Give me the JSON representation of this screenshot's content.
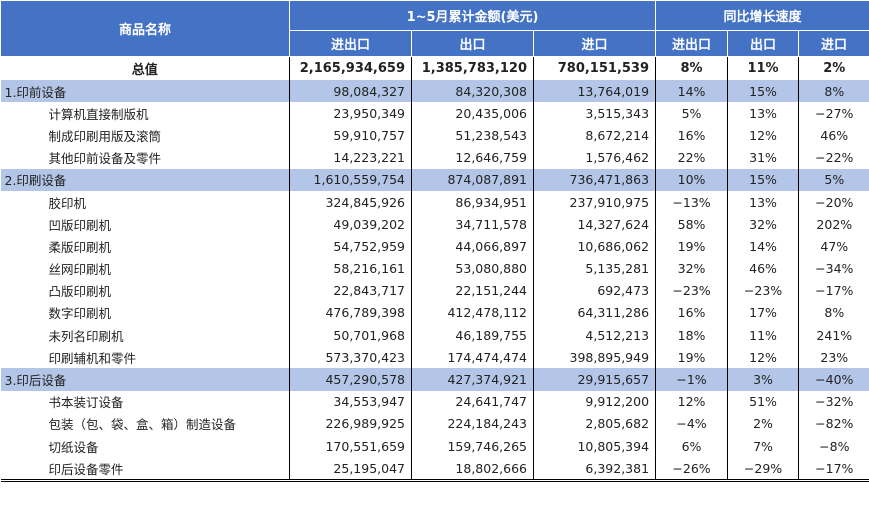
{
  "header": {
    "name": "商品名称",
    "amount_group": "1~5月累计金额(美元)",
    "growth_group": "同比增长速度",
    "cols": [
      "进出口",
      "出口",
      "进口",
      "进出口",
      "出口",
      "进口"
    ]
  },
  "total": {
    "name": "总值",
    "values": [
      "2,165,934,659",
      "1,385,783,120",
      "780,151,539",
      "8%",
      "11%",
      "2%"
    ]
  },
  "rows": [
    {
      "type": "cat",
      "name": "1.印前设备",
      "values": [
        "98,084,327",
        "84,320,308",
        "13,764,019",
        "14%",
        "15%",
        "8%"
      ]
    },
    {
      "type": "sub",
      "name": "计算机直接制版机",
      "values": [
        "23,950,349",
        "20,435,006",
        "3,515,343",
        "5%",
        "13%",
        "−27%"
      ]
    },
    {
      "type": "sub",
      "name": "制成印刷用版及滚筒",
      "values": [
        "59,910,757",
        "51,238,543",
        "8,672,214",
        "16%",
        "12%",
        "46%"
      ]
    },
    {
      "type": "sub",
      "name": "其他印前设备及零件",
      "values": [
        "14,223,221",
        "12,646,759",
        "1,576,462",
        "22%",
        "31%",
        "−22%"
      ]
    },
    {
      "type": "cat",
      "name": "2.印刷设备",
      "values": [
        "1,610,559,754",
        "874,087,891",
        "736,471,863",
        "10%",
        "15%",
        "5%"
      ]
    },
    {
      "type": "sub",
      "name": "胶印机",
      "values": [
        "324,845,926",
        "86,934,951",
        "237,910,975",
        "−13%",
        "13%",
        "−20%"
      ]
    },
    {
      "type": "sub",
      "name": "凹版印刷机",
      "values": [
        "49,039,202",
        "34,711,578",
        "14,327,624",
        "58%",
        "32%",
        "202%"
      ]
    },
    {
      "type": "sub",
      "name": "柔版印刷机",
      "values": [
        "54,752,959",
        "44,066,897",
        "10,686,062",
        "19%",
        "14%",
        "47%"
      ]
    },
    {
      "type": "sub",
      "name": "丝网印刷机",
      "values": [
        "58,216,161",
        "53,080,880",
        "5,135,281",
        "32%",
        "46%",
        "−34%"
      ]
    },
    {
      "type": "sub",
      "name": "凸版印刷机",
      "values": [
        "22,843,717",
        "22,151,244",
        "692,473",
        "−23%",
        "−23%",
        "−17%"
      ]
    },
    {
      "type": "sub",
      "name": "数字印刷机",
      "values": [
        "476,789,398",
        "412,478,112",
        "64,311,286",
        "16%",
        "17%",
        "8%"
      ]
    },
    {
      "type": "sub",
      "name": "未列名印刷机",
      "values": [
        "50,701,968",
        "46,189,755",
        "4,512,213",
        "18%",
        "11%",
        "241%"
      ]
    },
    {
      "type": "sub",
      "name": "印刷辅机和零件",
      "values": [
        "573,370,423",
        "174,474,474",
        "398,895,949",
        "19%",
        "12%",
        "23%"
      ]
    },
    {
      "type": "cat",
      "name": "3.印后设备",
      "values": [
        "457,290,578",
        "427,374,921",
        "29,915,657",
        "−1%",
        "3%",
        "−40%"
      ]
    },
    {
      "type": "sub",
      "name": "书本装订设备",
      "values": [
        "34,553,947",
        "24,641,747",
        "9,912,200",
        "12%",
        "51%",
        "−32%"
      ]
    },
    {
      "type": "sub",
      "name": "包装（包、袋、盒、箱）制造设备",
      "values": [
        "226,989,925",
        "224,184,243",
        "2,805,682",
        "−4%",
        "2%",
        "−82%"
      ]
    },
    {
      "type": "sub",
      "name": "切纸设备",
      "values": [
        "170,551,659",
        "159,746,265",
        "10,805,394",
        "6%",
        "7%",
        "−8%"
      ]
    },
    {
      "type": "sub",
      "name": "印后设备零件",
      "values": [
        "25,195,047",
        "18,802,666",
        "6,392,381",
        "−26%",
        "−29%",
        "−17%"
      ]
    }
  ],
  "colors": {
    "header": "#4472C4",
    "category_row": "#B4C6E7"
  }
}
